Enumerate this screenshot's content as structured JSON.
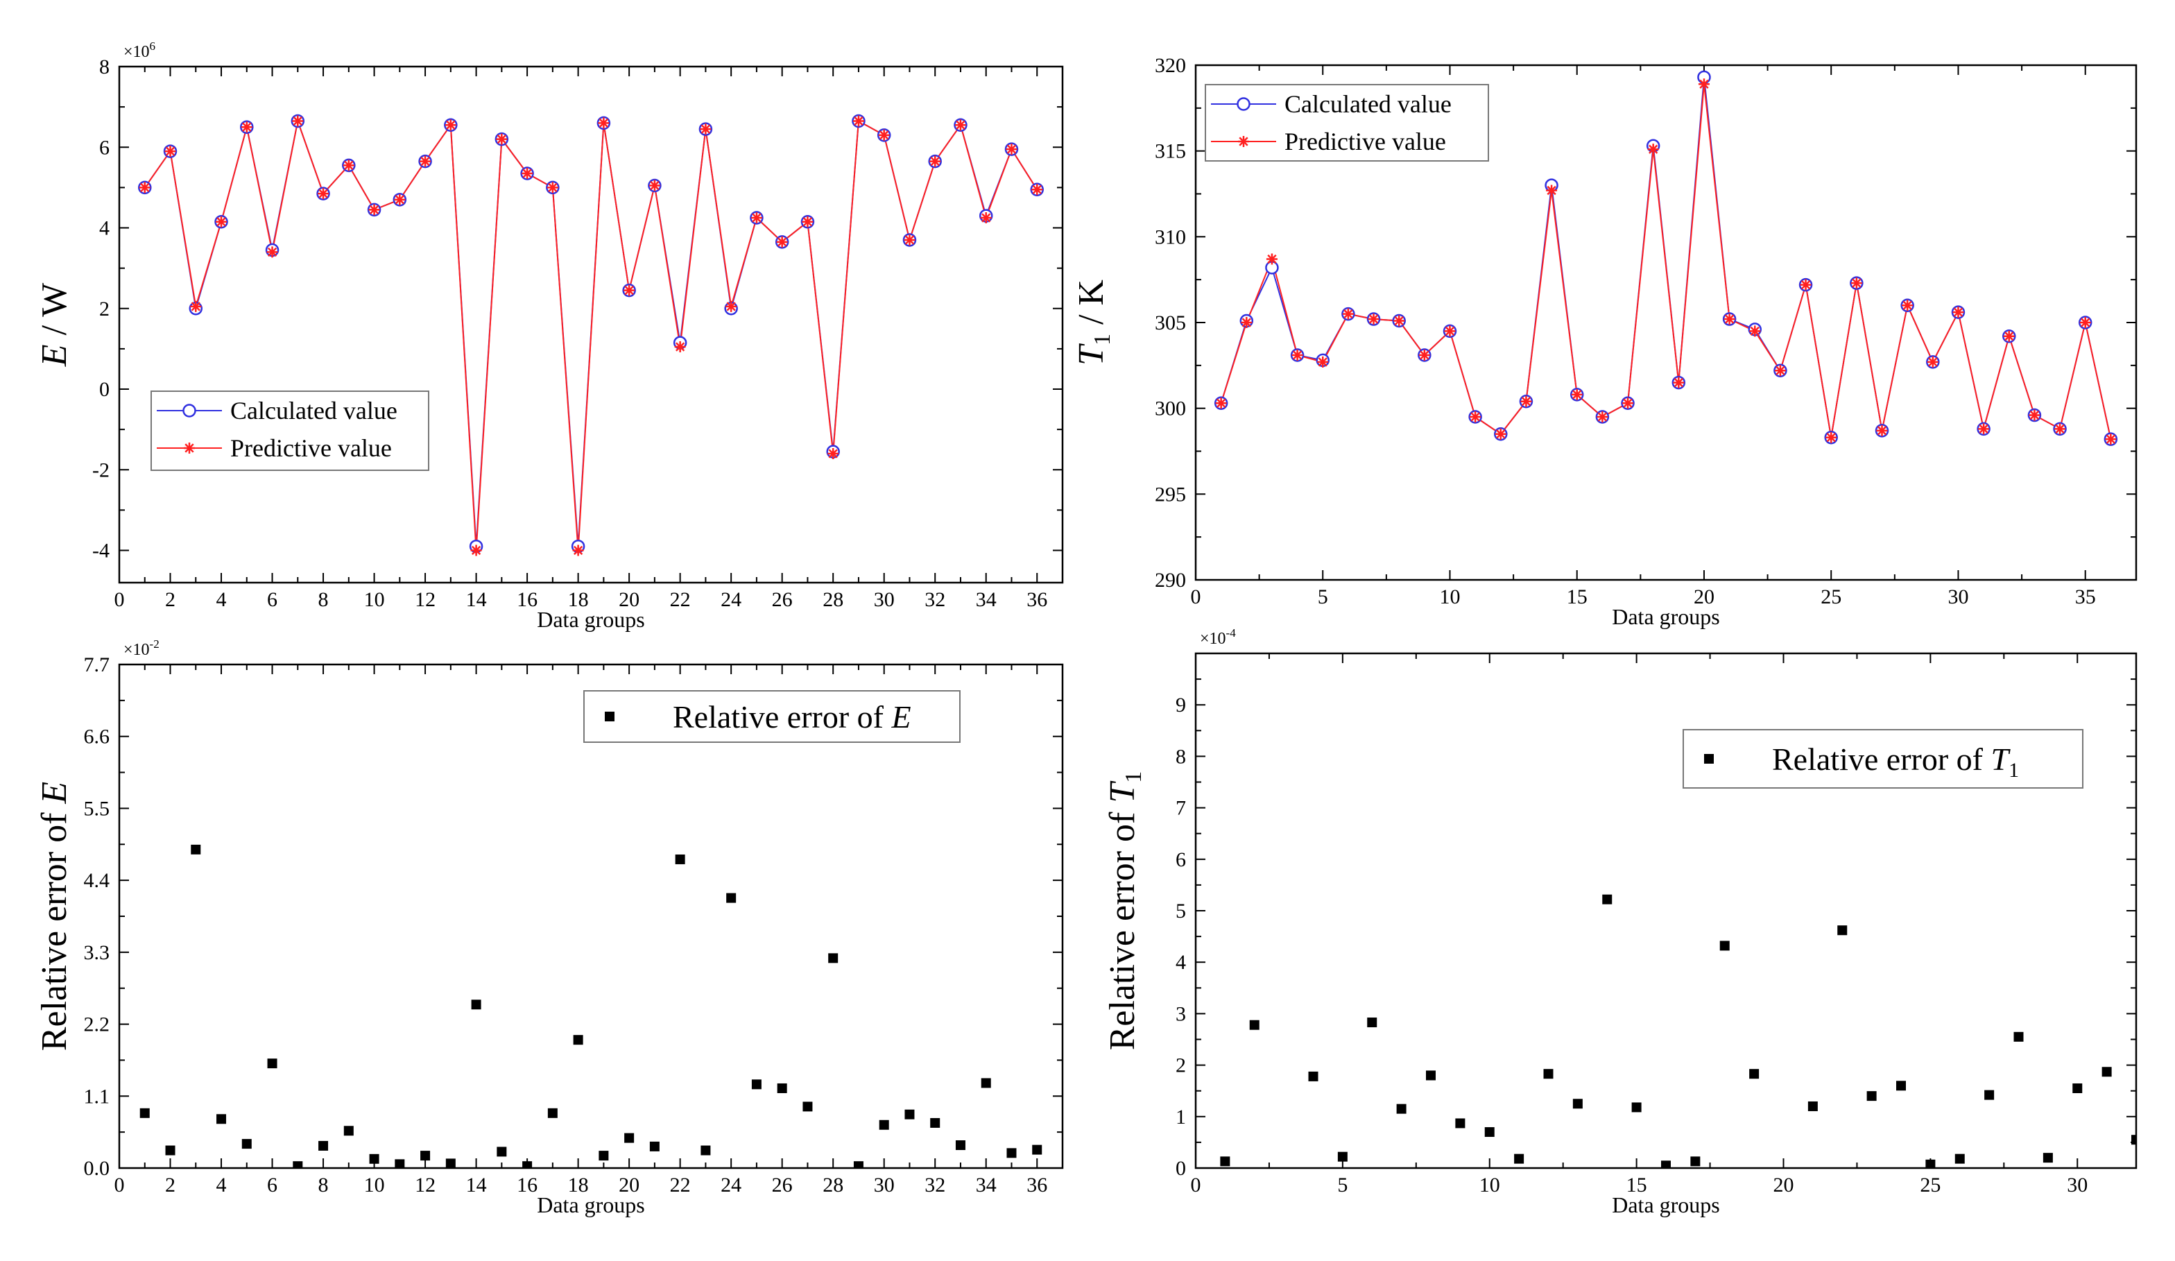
{
  "chart_data": [
    {
      "type": "line",
      "title": "",
      "exponent_label": "×10",
      "exponent_power": "6",
      "ylabel": "E / W",
      "xlabel": "Data groups",
      "xlim": [
        0,
        37
      ],
      "ylim": [
        -4.8,
        8
      ],
      "xticks": [
        0,
        2,
        4,
        6,
        8,
        10,
        12,
        14,
        16,
        18,
        20,
        22,
        24,
        26,
        28,
        30,
        32,
        34,
        36
      ],
      "yticks": [
        -4,
        -2,
        0,
        2,
        4,
        6,
        8
      ],
      "legend": {
        "position": "bottom-left",
        "entries": [
          "Calculated value",
          "Predictive value"
        ]
      },
      "x": [
        1,
        2,
        3,
        4,
        5,
        6,
        7,
        8,
        9,
        10,
        11,
        12,
        13,
        14,
        15,
        16,
        17,
        18,
        19,
        20,
        21,
        22,
        23,
        24,
        25,
        26,
        27,
        28,
        29,
        30,
        31,
        32,
        33,
        34,
        35,
        36
      ],
      "series": [
        {
          "name": "Calculated value",
          "color": "#3030e0",
          "marker": "circle",
          "values": [
            5.0,
            5.9,
            2.0,
            4.15,
            6.5,
            3.45,
            6.65,
            4.85,
            5.55,
            4.45,
            4.7,
            5.65,
            6.55,
            -3.9,
            6.2,
            5.35,
            5.0,
            -3.9,
            6.6,
            2.45,
            5.05,
            1.15,
            6.45,
            2.0,
            4.25,
            3.65,
            4.15,
            -1.55,
            6.65,
            6.3,
            3.7,
            5.65,
            6.55,
            4.3,
            5.95,
            4.95
          ]
        },
        {
          "name": "Predictive value",
          "color": "#ff2020",
          "marker": "asterisk",
          "values": [
            5.0,
            5.9,
            2.05,
            4.15,
            6.5,
            3.4,
            6.65,
            4.85,
            5.55,
            4.45,
            4.7,
            5.65,
            6.55,
            -4.0,
            6.2,
            5.35,
            5.0,
            -4.0,
            6.6,
            2.45,
            5.05,
            1.05,
            6.45,
            2.05,
            4.25,
            3.65,
            4.15,
            -1.6,
            6.65,
            6.3,
            3.7,
            5.65,
            6.55,
            4.25,
            5.95,
            4.95
          ]
        }
      ]
    },
    {
      "type": "line",
      "title": "",
      "ylabel": "T1 / K",
      "ylabel_main": "T",
      "ylabel_sub": "1",
      "ylabel_unit": " / K",
      "xlabel": "Data groups",
      "xlim": [
        0,
        37
      ],
      "ylim": [
        290,
        320
      ],
      "xticks": [
        0,
        5,
        10,
        15,
        20,
        25,
        30,
        35
      ],
      "yticks": [
        290,
        295,
        300,
        305,
        310,
        315,
        320
      ],
      "legend": {
        "position": "top-left",
        "entries": [
          "Calculated value",
          "Predictive value"
        ]
      },
      "x": [
        1,
        2,
        3,
        4,
        5,
        6,
        7,
        8,
        9,
        10,
        11,
        12,
        13,
        14,
        15,
        16,
        17,
        18,
        19,
        20,
        21,
        22,
        23,
        24,
        25,
        26,
        27,
        28,
        29,
        30,
        31,
        32,
        33,
        34,
        35,
        36
      ],
      "series": [
        {
          "name": "Calculated value",
          "color": "#3030e0",
          "marker": "circle",
          "values": [
            300.3,
            305.1,
            308.2,
            303.1,
            302.8,
            305.5,
            305.2,
            305.1,
            303.1,
            304.5,
            299.5,
            298.5,
            300.4,
            313.0,
            300.8,
            299.5,
            300.3,
            315.3,
            301.5,
            319.3,
            305.2,
            304.6,
            302.2,
            307.2,
            298.3,
            307.3,
            298.7,
            306.0,
            302.7,
            305.6,
            298.8,
            304.2,
            299.6,
            298.8,
            305.0,
            298.2
          ]
        },
        {
          "name": "Predictive value",
          "color": "#ff2020",
          "marker": "asterisk",
          "values": [
            300.3,
            305.0,
            308.7,
            303.1,
            302.7,
            305.5,
            305.2,
            305.1,
            303.1,
            304.5,
            299.5,
            298.5,
            300.4,
            312.7,
            300.8,
            299.5,
            300.3,
            315.1,
            301.5,
            318.9,
            305.2,
            304.5,
            302.2,
            307.2,
            298.3,
            307.3,
            298.7,
            306.0,
            302.7,
            305.6,
            298.8,
            304.2,
            299.6,
            298.8,
            305.0,
            298.2
          ]
        }
      ]
    },
    {
      "type": "scatter",
      "title": "",
      "exponent_label": "×10",
      "exponent_power": "-2",
      "ylabel": "Relative error of E",
      "ylabel_main": "Relative error of ",
      "ylabel_var": "E",
      "xlabel": "Data groups",
      "xlim": [
        0,
        37
      ],
      "ylim": [
        0,
        7.7
      ],
      "xticks": [
        0,
        2,
        4,
        6,
        8,
        10,
        12,
        14,
        16,
        18,
        20,
        22,
        24,
        26,
        28,
        30,
        32,
        34,
        36
      ],
      "yticks": [
        0.0,
        1.1,
        2.2,
        3.3,
        4.4,
        5.5,
        6.6,
        7.7
      ],
      "ytick_labels": [
        "0.0",
        "1.1",
        "2.2",
        "3.3",
        "4.4",
        "5.5",
        "6.6",
        "7.7"
      ],
      "legend": {
        "position": "top-right",
        "entries": [
          "Relative error of E"
        ],
        "label_main": "Relative error of ",
        "label_var": "E"
      },
      "x": [
        1,
        2,
        3,
        4,
        5,
        6,
        7,
        8,
        9,
        10,
        11,
        12,
        13,
        14,
        15,
        16,
        17,
        18,
        19,
        20,
        21,
        22,
        23,
        24,
        25,
        26,
        27,
        28,
        29,
        30,
        31,
        32,
        33,
        34,
        35,
        36
      ],
      "values": [
        0.84,
        0.27,
        4.87,
        0.75,
        0.37,
        1.6,
        0.03,
        0.34,
        0.57,
        0.14,
        0.06,
        0.19,
        0.07,
        2.5,
        0.25,
        0.03,
        0.84,
        1.96,
        0.19,
        0.46,
        0.33,
        4.72,
        0.27,
        4.13,
        1.28,
        1.22,
        0.94,
        3.21,
        0.03,
        0.66,
        0.82,
        0.69,
        0.35,
        1.3,
        0.23,
        0.28
      ]
    },
    {
      "type": "scatter",
      "title": "",
      "exponent_label": "×10",
      "exponent_power": "-4",
      "ylabel": "Relative error of T1",
      "ylabel_main": "Relative error of ",
      "ylabel_var": "T",
      "ylabel_sub": "1",
      "xlabel": "Data groups",
      "xlim": [
        0,
        32
      ],
      "ylim": [
        0,
        10
      ],
      "xticks": [
        0,
        5,
        10,
        15,
        20,
        25,
        30
      ],
      "yticks": [
        0,
        1,
        2,
        3,
        4,
        5,
        6,
        7,
        8,
        9
      ],
      "legend": {
        "position": "top-right",
        "entries": [
          "Relative error of T1"
        ],
        "label_main": "Relative error of ",
        "label_var": "T",
        "label_sub": "1"
      },
      "x": [
        1,
        2,
        4,
        5,
        6,
        7,
        8,
        9,
        10,
        11,
        12,
        13,
        14,
        15,
        16,
        17,
        18,
        19,
        21,
        22,
        23,
        24,
        25,
        26,
        27,
        28,
        29,
        30,
        31,
        32
      ],
      "values": [
        0.13,
        2.78,
        1.78,
        0.22,
        2.83,
        1.15,
        1.8,
        0.87,
        0.7,
        0.18,
        1.83,
        1.25,
        5.22,
        1.18,
        0.05,
        0.13,
        4.32,
        1.83,
        1.2,
        4.62,
        1.4,
        1.6,
        0.07,
        0.18,
        1.42,
        2.55,
        0.2,
        1.55,
        1.87,
        0.55
      ]
    }
  ]
}
